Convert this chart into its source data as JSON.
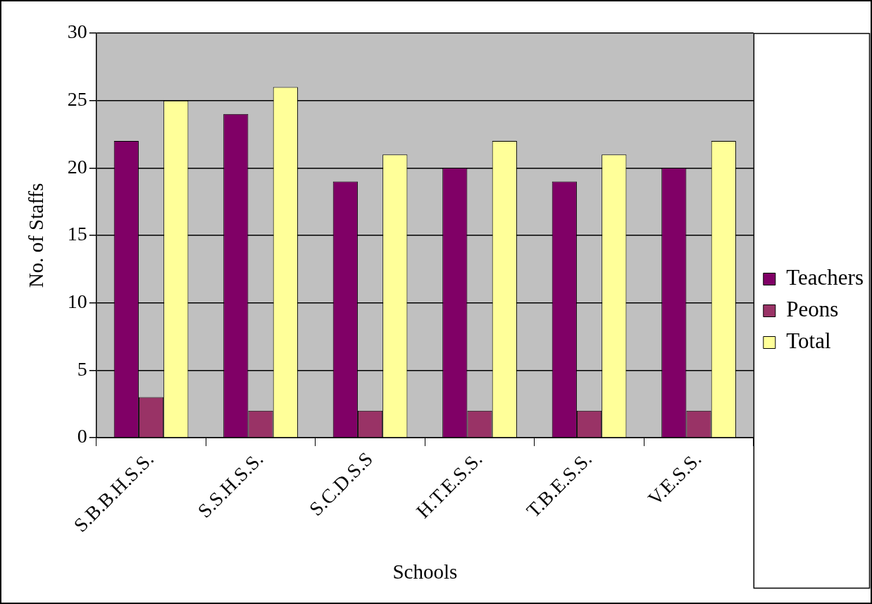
{
  "chart_data": {
    "type": "bar",
    "xlabel": "Schools",
    "ylabel": "No. of Staffs",
    "categories": [
      "S.B.B.H.S.S.",
      "S.S.H.S.S.",
      "S.C.D.S.S",
      "H.T.E.S.S.",
      "T.B.E.S.S.",
      "V.E.S.S."
    ],
    "series": [
      {
        "name": "Teachers",
        "color": "#800066",
        "values": [
          22,
          24,
          19,
          20,
          19,
          20
        ]
      },
      {
        "name": "Peons",
        "color": "#993366",
        "values": [
          3,
          2,
          2,
          2,
          2,
          2
        ]
      },
      {
        "name": "Total",
        "color": "#ffff99",
        "values": [
          25,
          26,
          21,
          22,
          21,
          22
        ]
      }
    ],
    "ylim": [
      0,
      30
    ],
    "yticks": [
      0,
      5,
      10,
      15,
      20,
      25,
      30
    ],
    "grid": "y",
    "legend": "right"
  }
}
